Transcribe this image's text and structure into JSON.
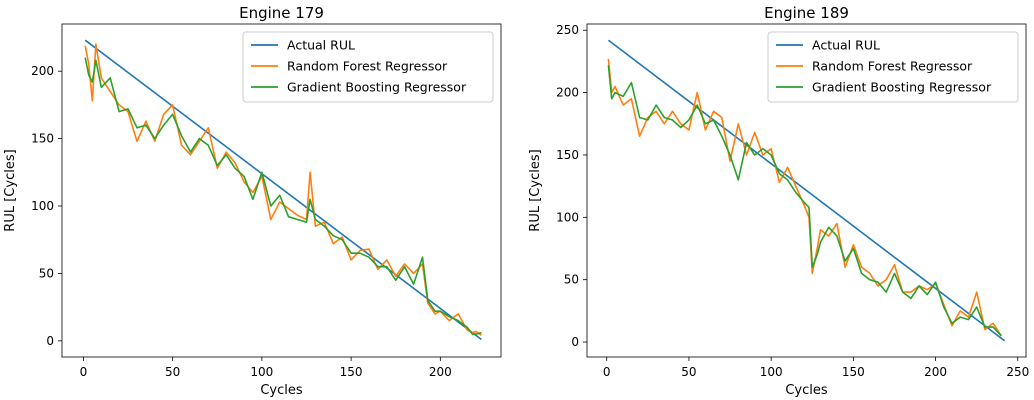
{
  "chart_data": [
    {
      "type": "line",
      "title": "Engine 179",
      "xlabel": "Cycles",
      "ylabel": "RUL [Cycles]",
      "xlim": [
        -12,
        234
      ],
      "ylim": [
        -12,
        235
      ],
      "xticks": [
        0,
        50,
        100,
        150,
        200
      ],
      "yticks": [
        0,
        50,
        100,
        150,
        200
      ],
      "grid": false,
      "legend_position": "top-right",
      "series": [
        {
          "name": "Actual RUL",
          "color": "#1f77b4",
          "x": [
            1,
            223
          ],
          "y": [
            223,
            1
          ]
        },
        {
          "name": "Random Forest Regressor",
          "color": "#ff7f0e",
          "x": [
            1,
            3,
            5,
            7,
            10,
            15,
            20,
            25,
            30,
            35,
            40,
            45,
            50,
            55,
            60,
            65,
            70,
            75,
            80,
            85,
            90,
            95,
            100,
            105,
            110,
            115,
            120,
            125,
            127,
            130,
            135,
            140,
            145,
            150,
            155,
            160,
            165,
            170,
            175,
            180,
            185,
            190,
            193,
            197,
            200,
            205,
            210,
            215,
            218,
            220,
            223
          ],
          "y": [
            219,
            205,
            178,
            220,
            195,
            185,
            175,
            170,
            148,
            163,
            148,
            168,
            175,
            145,
            138,
            148,
            158,
            128,
            140,
            132,
            118,
            110,
            122,
            90,
            103,
            98,
            93,
            90,
            125,
            85,
            88,
            72,
            77,
            60,
            67,
            68,
            53,
            60,
            48,
            57,
            50,
            57,
            28,
            20,
            22,
            15,
            20,
            8,
            6,
            7,
            4
          ]
        },
        {
          "name": "Gradient Boosting Regressor",
          "color": "#2ca02c",
          "x": [
            1,
            3,
            5,
            7,
            10,
            15,
            20,
            25,
            30,
            35,
            40,
            45,
            50,
            55,
            60,
            65,
            70,
            75,
            80,
            85,
            90,
            95,
            100,
            105,
            110,
            115,
            120,
            125,
            127,
            130,
            135,
            140,
            145,
            150,
            155,
            160,
            165,
            170,
            175,
            180,
            185,
            190,
            193,
            197,
            200,
            205,
            210,
            215,
            218,
            220,
            223
          ],
          "y": [
            210,
            197,
            192,
            208,
            188,
            195,
            170,
            172,
            158,
            160,
            150,
            160,
            168,
            152,
            140,
            150,
            145,
            130,
            138,
            128,
            122,
            105,
            125,
            100,
            108,
            92,
            90,
            88,
            105,
            90,
            85,
            78,
            75,
            65,
            65,
            62,
            55,
            55,
            45,
            55,
            42,
            62,
            30,
            22,
            22,
            18,
            15,
            10,
            5,
            5,
            6
          ]
        }
      ]
    },
    {
      "type": "line",
      "title": "Engine 189",
      "xlabel": "Cycles",
      "ylabel": "RUL [Cycles]",
      "xlim": [
        -12,
        255
      ],
      "ylim": [
        -12,
        255
      ],
      "xticks": [
        0,
        50,
        100,
        150,
        200,
        250
      ],
      "yticks": [
        0,
        50,
        100,
        150,
        200,
        250
      ],
      "grid": false,
      "legend_position": "top-right",
      "series": [
        {
          "name": "Actual RUL",
          "color": "#1f77b4",
          "x": [
            1,
            242
          ],
          "y": [
            242,
            1
          ]
        },
        {
          "name": "Random Forest Regressor",
          "color": "#ff7f0e",
          "x": [
            1,
            3,
            5,
            10,
            15,
            20,
            25,
            30,
            35,
            40,
            45,
            50,
            55,
            60,
            65,
            70,
            75,
            80,
            85,
            90,
            95,
            100,
            105,
            110,
            115,
            120,
            123,
            125,
            128,
            130,
            135,
            140,
            145,
            150,
            155,
            160,
            165,
            170,
            175,
            180,
            185,
            190,
            195,
            200,
            205,
            210,
            215,
            220,
            225,
            230,
            235,
            240
          ],
          "y": [
            227,
            200,
            205,
            190,
            195,
            165,
            180,
            185,
            175,
            185,
            175,
            170,
            200,
            170,
            185,
            180,
            145,
            175,
            150,
            168,
            150,
            155,
            128,
            140,
            125,
            110,
            100,
            55,
            75,
            90,
            85,
            95,
            60,
            78,
            60,
            55,
            45,
            50,
            62,
            40,
            40,
            45,
            42,
            47,
            30,
            13,
            25,
            20,
            40,
            10,
            15,
            5
          ]
        },
        {
          "name": "Gradient Boosting Regressor",
          "color": "#2ca02c",
          "x": [
            1,
            3,
            5,
            10,
            15,
            20,
            25,
            30,
            35,
            40,
            45,
            50,
            55,
            60,
            65,
            70,
            75,
            80,
            85,
            90,
            95,
            100,
            105,
            110,
            115,
            120,
            123,
            125,
            128,
            130,
            135,
            140,
            145,
            150,
            155,
            160,
            165,
            170,
            175,
            180,
            185,
            190,
            195,
            200,
            205,
            210,
            215,
            220,
            225,
            230,
            235,
            240
          ],
          "y": [
            222,
            195,
            200,
            197,
            208,
            180,
            178,
            190,
            180,
            178,
            172,
            178,
            190,
            175,
            178,
            165,
            150,
            130,
            160,
            150,
            155,
            150,
            135,
            130,
            120,
            112,
            108,
            60,
            70,
            80,
            92,
            85,
            65,
            75,
            55,
            50,
            48,
            40,
            55,
            40,
            35,
            45,
            38,
            48,
            28,
            15,
            20,
            18,
            28,
            12,
            12,
            5
          ]
        }
      ]
    }
  ]
}
